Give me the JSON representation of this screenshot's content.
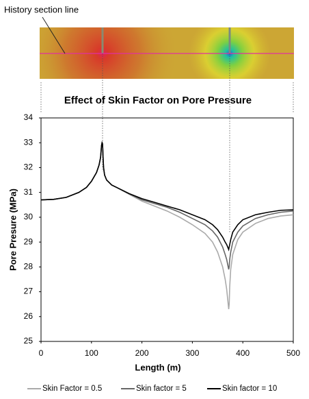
{
  "annotation": "History section line",
  "chart_data": {
    "type": "line",
    "title": "Effect of Skin Factor on Pore Pressure",
    "x_label": "Length (m)",
    "y_label": "Pore Presure (MPa)",
    "x": [
      0,
      25,
      50,
      75,
      90,
      100,
      110,
      115,
      118,
      120,
      121,
      122,
      123,
      124,
      126,
      130,
      140,
      150,
      175,
      200,
      225,
      250,
      275,
      300,
      325,
      340,
      350,
      360,
      365,
      368,
      370,
      372,
      373,
      374,
      376,
      380,
      390,
      400,
      425,
      450,
      475,
      500
    ],
    "series": [
      {
        "name": "Skin Factor = 0.5",
        "color": "#aaaaaa",
        "values": [
          30.7,
          30.72,
          30.8,
          31.0,
          31.2,
          31.45,
          31.8,
          32.1,
          32.4,
          32.9,
          33.0,
          32.95,
          32.4,
          32.0,
          31.7,
          31.5,
          31.3,
          31.2,
          30.92,
          30.65,
          30.45,
          30.25,
          30.0,
          29.7,
          29.35,
          29.0,
          28.6,
          28.0,
          27.5,
          27.1,
          26.7,
          26.3,
          26.5,
          27.2,
          27.9,
          28.5,
          29.1,
          29.4,
          29.75,
          29.95,
          30.05,
          30.1
        ]
      },
      {
        "name": "Skin factor = 5",
        "color": "#666666",
        "values": [
          30.7,
          30.72,
          30.8,
          31.0,
          31.2,
          31.45,
          31.8,
          32.1,
          32.4,
          32.9,
          33.0,
          32.95,
          32.4,
          32.0,
          31.7,
          31.5,
          31.3,
          31.2,
          30.94,
          30.7,
          30.55,
          30.4,
          30.2,
          29.95,
          29.7,
          29.45,
          29.2,
          28.8,
          28.5,
          28.3,
          28.1,
          27.9,
          28.0,
          28.3,
          28.6,
          29.0,
          29.4,
          29.65,
          29.95,
          30.1,
          30.2,
          30.25
        ]
      },
      {
        "name": "Skin factor = 10",
        "color": "#000000",
        "values": [
          30.7,
          30.72,
          30.8,
          31.0,
          31.2,
          31.45,
          31.8,
          32.1,
          32.4,
          32.9,
          33.0,
          32.95,
          32.4,
          32.0,
          31.7,
          31.5,
          31.3,
          31.2,
          30.95,
          30.75,
          30.6,
          30.45,
          30.3,
          30.1,
          29.9,
          29.7,
          29.5,
          29.2,
          29.0,
          28.9,
          28.8,
          28.7,
          28.8,
          28.9,
          29.1,
          29.4,
          29.7,
          29.9,
          30.1,
          30.2,
          30.28,
          30.3
        ]
      }
    ],
    "xlim": [
      0,
      500
    ],
    "xticks": [
      0,
      100,
      200,
      300,
      400,
      500
    ],
    "ylim": [
      25,
      34
    ],
    "yticks": [
      25,
      26,
      27,
      28,
      29,
      30,
      31,
      32,
      33,
      34
    ],
    "legend": "bottom"
  }
}
